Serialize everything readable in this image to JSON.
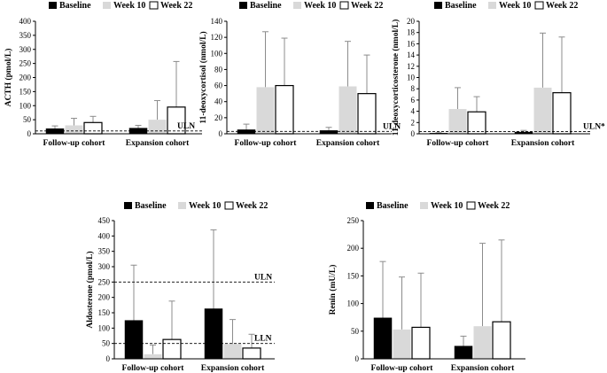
{
  "legend": {
    "series": [
      "Baseline",
      "Week 10",
      "Week 22"
    ]
  },
  "colors": {
    "baseline": "#000000",
    "week10": "#d9d9d9",
    "week22": "#ffffff",
    "axis": "#000000",
    "error_bar": "#8c8c8c"
  },
  "chart_data": [
    {
      "type": "bar",
      "ylabel": "ACTH (pmol/L)",
      "categories": [
        "Follow-up cohort",
        "Expansion cohort"
      ],
      "ylim": [
        0,
        400
      ],
      "yticks": [
        0,
        50,
        100,
        150,
        200,
        250,
        300,
        350,
        400
      ],
      "series": [
        {
          "name": "Baseline",
          "values": [
            18,
            20
          ],
          "errors": [
            10,
            10
          ]
        },
        {
          "name": "Week 10",
          "values": [
            30,
            50
          ],
          "errors": [
            25,
            68
          ]
        },
        {
          "name": "Week 22",
          "values": [
            40,
            95
          ],
          "errors": [
            22,
            162
          ]
        }
      ],
      "ref_lines": [
        {
          "label": "ULN",
          "value": 10
        }
      ]
    },
    {
      "type": "bar",
      "ylabel": "11-deoxycortisol (nmol/L)",
      "categories": [
        "Follow-up cohort",
        "Expansion cohort"
      ],
      "ylim": [
        0,
        140
      ],
      "yticks": [
        0,
        20,
        40,
        60,
        80,
        100,
        120,
        140
      ],
      "series": [
        {
          "name": "Baseline",
          "values": [
            5,
            4
          ],
          "errors": [
            7,
            4
          ]
        },
        {
          "name": "Week 10",
          "values": [
            58,
            59
          ],
          "errors": [
            69,
            56
          ]
        },
        {
          "name": "Week 22",
          "values": [
            60,
            50
          ],
          "errors": [
            59,
            48
          ]
        }
      ],
      "ref_lines": [
        {
          "label": "ULN",
          "value": 3
        }
      ]
    },
    {
      "type": "bar",
      "ylabel": "11-deoxycorticosterone (nmol/L)",
      "categories": [
        "Follow-up cohort",
        "Expansion cohort"
      ],
      "ylim": [
        0,
        20
      ],
      "yticks": [
        0,
        2,
        4,
        6,
        8,
        10,
        12,
        14,
        16,
        18,
        20
      ],
      "series": [
        {
          "name": "Baseline",
          "values": [
            0.1,
            0.3
          ],
          "errors": [
            0.1,
            0.3
          ]
        },
        {
          "name": "Week 10",
          "values": [
            4.4,
            8.2
          ],
          "errors": [
            3.8,
            9.7
          ]
        },
        {
          "name": "Week 22",
          "values": [
            3.9,
            7.3
          ],
          "errors": [
            2.7,
            9.9
          ]
        }
      ],
      "ref_lines": [
        {
          "label": "ULN*",
          "value": 0.4
        }
      ]
    },
    {
      "type": "bar",
      "ylabel": "Aldosterone (pmol/L)",
      "categories": [
        "Follow-up cohort",
        "Expansion cohort"
      ],
      "ylim": [
        0,
        450
      ],
      "yticks": [
        0,
        50,
        100,
        150,
        200,
        250,
        300,
        350,
        400,
        450
      ],
      "series": [
        {
          "name": "Baseline",
          "values": [
            125,
            163
          ],
          "errors": [
            180,
            257
          ]
        },
        {
          "name": "Week 10",
          "values": [
            15,
            48
          ],
          "errors": [
            30,
            80
          ]
        },
        {
          "name": "Week 22",
          "values": [
            63,
            35
          ],
          "errors": [
            125,
            45
          ]
        }
      ],
      "ref_lines": [
        {
          "label": "ULN",
          "value": 250
        },
        {
          "label": "LLN",
          "value": 50
        }
      ]
    },
    {
      "type": "bar",
      "ylabel": "Renin (mU/L)",
      "categories": [
        "Follow-up cohort",
        "Expansion cohort"
      ],
      "ylim": [
        0,
        250
      ],
      "yticks": [
        0,
        50,
        100,
        150,
        200,
        250
      ],
      "series": [
        {
          "name": "Baseline",
          "values": [
            74,
            23
          ],
          "errors": [
            102,
            18
          ]
        },
        {
          "name": "Week 10",
          "values": [
            53,
            59
          ],
          "errors": [
            95,
            150
          ]
        },
        {
          "name": "Week 22",
          "values": [
            57,
            67
          ],
          "errors": [
            98,
            148
          ]
        }
      ],
      "ref_lines": []
    }
  ]
}
